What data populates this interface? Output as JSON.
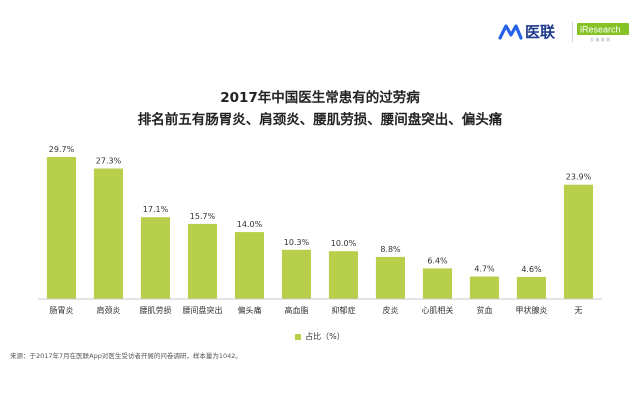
{
  "header": {
    "brand": "医联",
    "partner": "iResearch",
    "partner_tagline": "艾 瑞 咨 询"
  },
  "chart_data": {
    "type": "bar",
    "title": "2017年中国医生常患有的过劳病",
    "subtitle": "排名前五有肠胃炎、肩颈炎、腰肌劳损、腰间盘突出、偏头痛",
    "categories": [
      "肠胃炎",
      "肩颈炎",
      "腰肌劳损",
      "腰间盘突出",
      "偏头痛",
      "高血脂",
      "抑郁症",
      "皮炎",
      "心肌相关",
      "贫血",
      "甲状腺炎",
      "无"
    ],
    "series": [
      {
        "name": "占比（%）",
        "values": [
          29.7,
          27.3,
          17.1,
          15.7,
          14.0,
          10.3,
          10.0,
          8.8,
          6.4,
          4.7,
          4.6,
          23.9
        ]
      }
    ],
    "value_labels": [
      "29.7%",
      "27.3%",
      "17.1%",
      "15.7%",
      "14.0%",
      "10.3%",
      "10.0%",
      "8.8%",
      "6.4%",
      "4.7%",
      "4.6%",
      "23.9%"
    ],
    "ylim": [
      0,
      32
    ],
    "grid": false,
    "legend_position": "bottom",
    "bar_color": "#b8cf4b"
  },
  "footer": {
    "source": "来源：于2017年7月在医联App对医生受访者开展的问卷调研，样本量为1042。"
  }
}
